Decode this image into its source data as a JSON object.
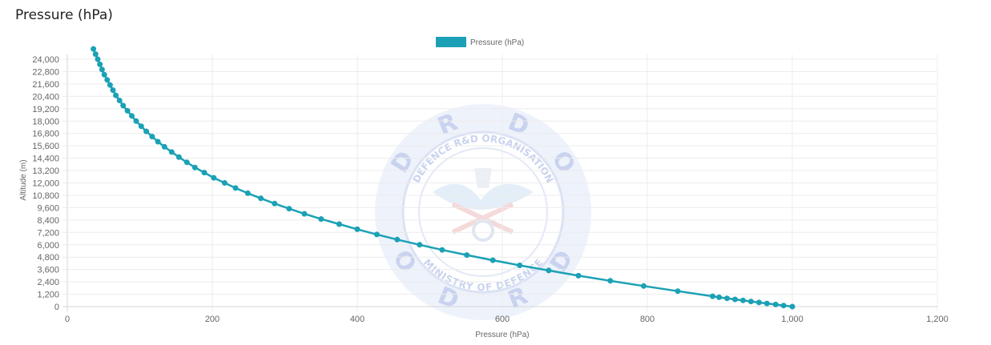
{
  "page": {
    "title": "Pressure (hPa)"
  },
  "watermark": {
    "letters": [
      "D",
      "R",
      "D",
      "O"
    ],
    "upper_text": "DEFENCE R&D ORGANISATION",
    "lower_text": "MINISTRY OF DEFENCE",
    "color": "#c9d3ef"
  },
  "chart_data": {
    "type": "line",
    "xlabel": "Pressure (hPa)",
    "ylabel": "Altitude (m)",
    "xlim": [
      0,
      1200
    ],
    "ylim": [
      0,
      24000
    ],
    "x_ticks": [
      "0",
      "200",
      "400",
      "600",
      "800",
      "1,000",
      "1,200"
    ],
    "y_ticks": [
      "0",
      "1,200",
      "2,400",
      "3,600",
      "4,800",
      "6,000",
      "7,200",
      "8,400",
      "9,600",
      "10,800",
      "12,000",
      "13,200",
      "14,400",
      "15,600",
      "16,800",
      "18,000",
      "19,200",
      "20,400",
      "21,600",
      "22,800",
      "24,000"
    ],
    "grid": true,
    "legend_position": "top-center",
    "color": "#1ba1b5",
    "series": [
      {
        "name": "Pressure (hPa)",
        "points": [
          [
            1000,
            0
          ],
          [
            988,
            100
          ],
          [
            977,
            200
          ],
          [
            965,
            300
          ],
          [
            954,
            400
          ],
          [
            943,
            500
          ],
          [
            932,
            600
          ],
          [
            921,
            700
          ],
          [
            910,
            800
          ],
          [
            899,
            900
          ],
          [
            890,
            1000
          ],
          [
            842,
            1500
          ],
          [
            795,
            2000
          ],
          [
            749,
            2500
          ],
          [
            705,
            3000
          ],
          [
            664,
            3500
          ],
          [
            624,
            4000
          ],
          [
            587,
            4500
          ],
          [
            551,
            5000
          ],
          [
            517,
            5500
          ],
          [
            486,
            6000
          ],
          [
            455,
            6500
          ],
          [
            427,
            7000
          ],
          [
            400,
            7500
          ],
          [
            375,
            8000
          ],
          [
            350,
            8500
          ],
          [
            327,
            9000
          ],
          [
            306,
            9500
          ],
          [
            286,
            10000
          ],
          [
            267,
            10500
          ],
          [
            249,
            11000
          ],
          [
            232,
            11500
          ],
          [
            217,
            12000
          ],
          [
            202,
            12500
          ],
          [
            189,
            13000
          ],
          [
            176,
            13500
          ],
          [
            165,
            14000
          ],
          [
            154,
            14500
          ],
          [
            144,
            15000
          ],
          [
            134,
            15500
          ],
          [
            125,
            16000
          ],
          [
            117,
            16500
          ],
          [
            109,
            17000
          ],
          [
            102,
            17500
          ],
          [
            95,
            18000
          ],
          [
            89,
            18500
          ],
          [
            83,
            19000
          ],
          [
            77,
            19500
          ],
          [
            72,
            20000
          ],
          [
            67,
            20500
          ],
          [
            63,
            21000
          ],
          [
            59,
            21500
          ],
          [
            55,
            22000
          ],
          [
            51,
            22500
          ],
          [
            48,
            23000
          ],
          [
            45,
            23500
          ],
          [
            42,
            24000
          ],
          [
            39,
            24500
          ],
          [
            36,
            25000
          ]
        ]
      }
    ]
  }
}
